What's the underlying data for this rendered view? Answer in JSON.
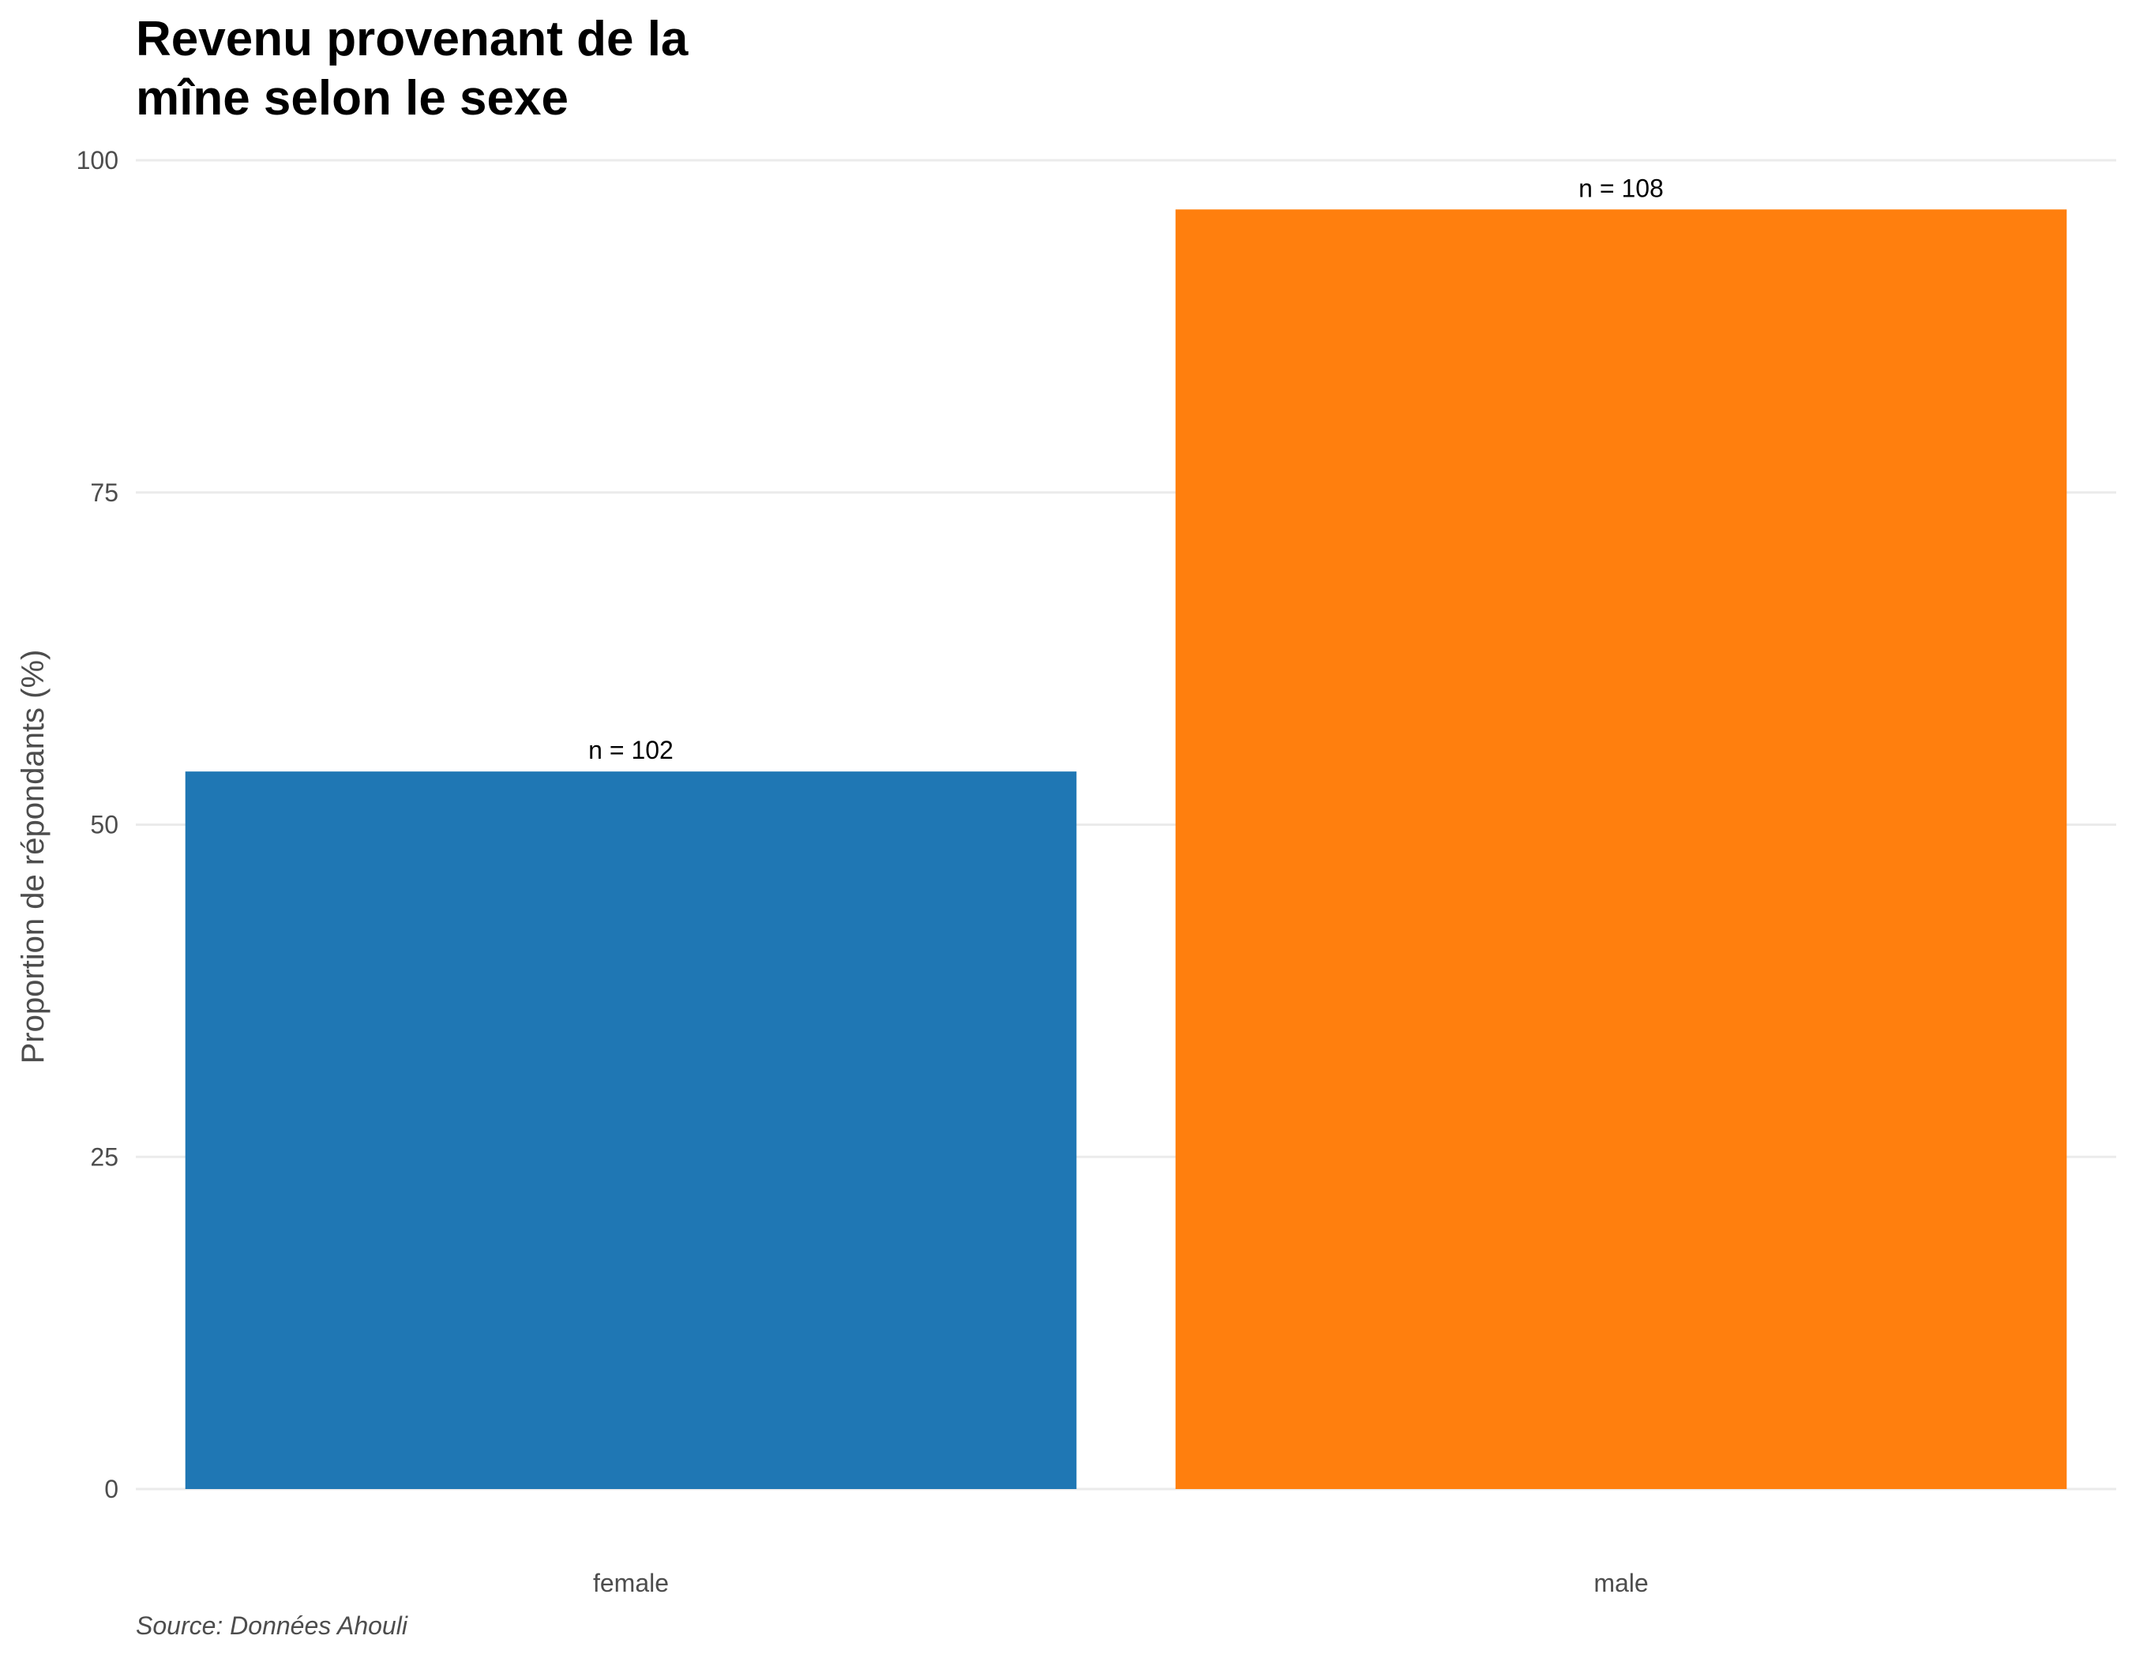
{
  "chart_data": {
    "type": "bar",
    "title_lines": [
      "Revenu provenant de la",
      "mîne selon le sexe"
    ],
    "xlabel": "",
    "ylabel": "Proportion de répondants (%)",
    "categories": [
      "female",
      "male"
    ],
    "values": [
      54,
      96.3
    ],
    "data_labels": [
      "n = 102",
      "n = 108"
    ],
    "colors": [
      "#1f77b4",
      "#ff7f0e"
    ],
    "ylim": [
      0,
      100
    ],
    "yticks": [
      0,
      25,
      50,
      75,
      100
    ],
    "ytick_labels": [
      "0",
      "25",
      "50",
      "75",
      "100"
    ],
    "grid": "horizontal",
    "legend": "none",
    "caption": "Source: Données Ahouli"
  }
}
